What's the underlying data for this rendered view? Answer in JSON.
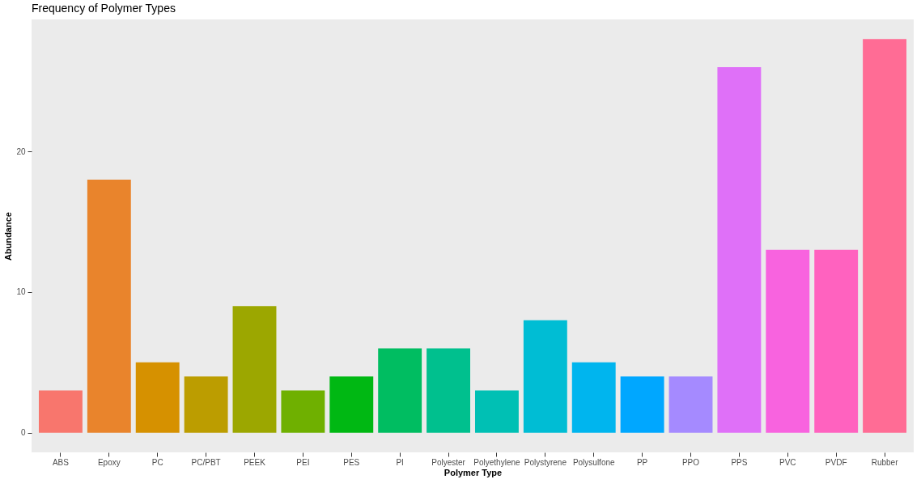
{
  "chart_data": {
    "type": "bar",
    "title": "Frequency of Polymer Types",
    "xlabel": "Polymer Type",
    "ylabel": "Abundance",
    "categories": [
      "ABS",
      "Epoxy",
      "PC",
      "PC/PBT",
      "PEEK",
      "PEI",
      "PES",
      "PI",
      "Polyester",
      "Polyethylene",
      "Polystyrene",
      "Polysulfone",
      "PP",
      "PPO",
      "PPS",
      "PVC",
      "PVDF",
      "Rubber"
    ],
    "values": [
      3,
      18,
      5,
      4,
      9,
      3,
      4,
      6,
      6,
      3,
      8,
      5,
      4,
      4,
      26,
      13,
      13,
      28
    ],
    "colors": [
      "#F8766D",
      "#E9842C",
      "#D69100",
      "#BC9D00",
      "#9CA700",
      "#6FB000",
      "#00B813",
      "#00BD61",
      "#00C08E",
      "#00C0B4",
      "#00BDD4",
      "#00B5EE",
      "#00A7FF",
      "#A58AFF",
      "#DF70F8",
      "#F863DF",
      "#FF62BF",
      "#FF6C95"
    ],
    "ylim": [
      -1.4,
      29.4
    ],
    "yticks": [
      0,
      10,
      20
    ]
  }
}
